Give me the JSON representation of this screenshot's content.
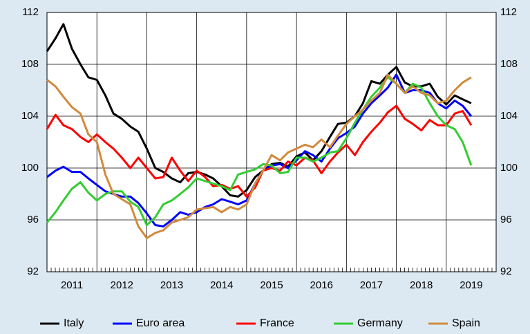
{
  "chart_data": {
    "type": "line",
    "x": [
      2011,
      2011.17,
      2011.33,
      2011.5,
      2011.67,
      2011.83,
      2012,
      2012.17,
      2012.33,
      2012.5,
      2012.67,
      2012.83,
      2013,
      2013.17,
      2013.33,
      2013.5,
      2013.67,
      2013.83,
      2014,
      2014.17,
      2014.33,
      2014.5,
      2014.67,
      2014.83,
      2015,
      2015.17,
      2015.33,
      2015.5,
      2015.67,
      2015.83,
      2016,
      2016.17,
      2016.33,
      2016.5,
      2016.67,
      2016.83,
      2017,
      2017.17,
      2017.33,
      2017.5,
      2017.67,
      2017.83,
      2018,
      2018.17,
      2018.33,
      2018.5,
      2018.67,
      2018.83,
      2019,
      2019.17,
      2019.33,
      2019.5
    ],
    "series": [
      {
        "name": "Italy",
        "color": "#000000",
        "values": [
          109,
          110,
          111.1,
          109.2,
          108,
          107,
          106.8,
          105.6,
          104.2,
          103.8,
          103.2,
          102.8,
          101.5,
          100,
          99.7,
          99.2,
          98.9,
          99.6,
          99.7,
          99.5,
          99.2,
          98.6,
          97.9,
          97.8,
          98.3,
          99.3,
          99.8,
          100.3,
          100.4,
          100.1,
          100.9,
          101.2,
          100.6,
          101.3,
          102.4,
          103.4,
          103.5,
          104,
          105,
          106.7,
          106.5,
          107.2,
          107.8,
          106.6,
          106.3,
          106.3,
          106.5,
          105.5,
          104.9,
          105.6,
          105.3,
          105
        ]
      },
      {
        "name": "Euro area",
        "color": "#0000ff",
        "values": [
          99.3,
          99.8,
          100.1,
          99.7,
          99.7,
          99.2,
          98.7,
          98.2,
          98,
          97.8,
          97.8,
          97.3,
          96.5,
          95.6,
          95.5,
          96,
          96.6,
          96.4,
          96.6,
          97,
          97.2,
          97.6,
          97.4,
          97.2,
          97.5,
          98.8,
          99.8,
          100.2,
          100.3,
          100,
          100.6,
          101.3,
          101,
          100.5,
          101.5,
          102.3,
          102.7,
          103.2,
          104.2,
          105,
          105.6,
          106.2,
          107.2,
          105.8,
          106,
          106,
          105.8,
          105,
          104.6,
          105.2,
          104.8,
          104
        ]
      },
      {
        "name": "France",
        "color": "#ff0000",
        "values": [
          103,
          104.1,
          103.3,
          103,
          102.4,
          102,
          102.6,
          102,
          101.5,
          100.8,
          100,
          100.8,
          100,
          99.2,
          99.3,
          100.8,
          99.8,
          99,
          99.8,
          99.3,
          98.6,
          98.7,
          98.4,
          98.6,
          97.8,
          98.5,
          99.8,
          100,
          99.8,
          100.5,
          100.2,
          100.8,
          100.6,
          99.6,
          100.5,
          101.2,
          101.8,
          101,
          102,
          102.8,
          103.5,
          104.3,
          104.8,
          103.8,
          103.4,
          102.9,
          103.7,
          103.3,
          103.3,
          104.2,
          104.4,
          103.3
        ]
      },
      {
        "name": "Germany",
        "color": "#33cc33",
        "values": [
          95.8,
          96.6,
          97.5,
          98.4,
          98.9,
          98.1,
          97.5,
          98,
          98.2,
          98.2,
          97.4,
          97,
          95.6,
          96.2,
          97.2,
          97.5,
          98,
          98.5,
          99.2,
          99,
          98.8,
          98.6,
          98.3,
          99.5,
          99.7,
          99.9,
          100.3,
          100.2,
          99.6,
          99.7,
          100.8,
          100.8,
          100.5,
          100.8,
          101.2,
          101.3,
          102.3,
          103.5,
          104.5,
          105.5,
          106.2,
          107,
          106.5,
          105.8,
          106.5,
          106.2,
          105,
          104,
          103.3,
          103,
          102,
          100.2
        ]
      },
      {
        "name": "Spain",
        "color": "#d28a3c",
        "values": [
          106.8,
          106.3,
          105.5,
          104.7,
          104.2,
          102.6,
          102,
          99.5,
          98,
          97.6,
          97.2,
          95.5,
          94.6,
          95,
          95.2,
          95.8,
          96,
          96.2,
          96.8,
          96.9,
          97,
          96.6,
          97,
          96.8,
          97.2,
          98.8,
          99.8,
          101,
          100.6,
          101.2,
          101.5,
          101.8,
          101.6,
          102.2,
          101.6,
          102.5,
          103.4,
          104,
          104.5,
          105.2,
          105.8,
          107.2,
          106.5,
          105.8,
          106.3,
          105.8,
          105.6,
          105,
          105.2,
          106,
          106.6,
          107
        ]
      }
    ],
    "xlim": [
      2011,
      2020
    ],
    "xticks": [
      {
        "value": 2011.5,
        "label": "2011"
      },
      {
        "value": 2012.5,
        "label": "2012"
      },
      {
        "value": 2013.5,
        "label": "2013"
      },
      {
        "value": 2014.5,
        "label": "2014"
      },
      {
        "value": 2015.5,
        "label": "2015"
      },
      {
        "value": 2016.5,
        "label": "2016"
      },
      {
        "value": 2017.5,
        "label": "2017"
      },
      {
        "value": 2018.5,
        "label": "2018"
      },
      {
        "value": 2019.5,
        "label": "2019"
      }
    ],
    "xgrid": [
      2012,
      2013,
      2014,
      2015,
      2016,
      2017,
      2018,
      2019
    ],
    "ylim": [
      92,
      112
    ],
    "yticks": [
      92,
      96,
      100,
      104,
      108,
      112
    ],
    "y2lim": [
      92,
      112
    ],
    "y2ticks": [
      92,
      96,
      100,
      104,
      108,
      112
    ],
    "grid": true,
    "legend": "bottom"
  }
}
